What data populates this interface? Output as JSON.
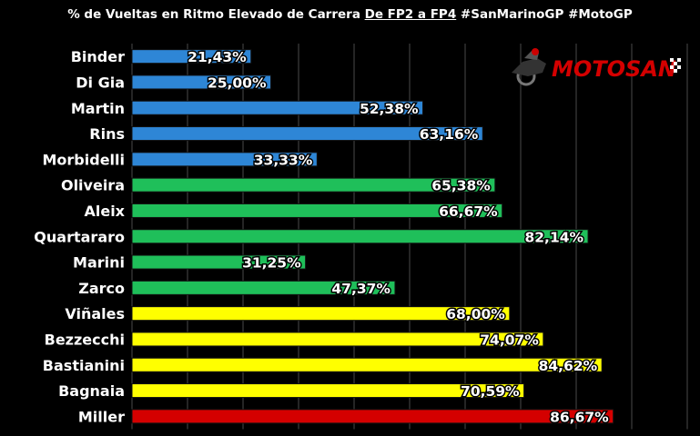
{
  "title": {
    "part1": "% de Vueltas en Ritmo Elevado de Carrera ",
    "part2": "De FP2 a FP4",
    "part3": " #SanMarinoGP #MotoGP"
  },
  "logo": {
    "text": "MOTOSAN"
  },
  "colors": {
    "background": "#000000",
    "grid": "#4a4a4a",
    "blue": "#2e86d6",
    "green": "#1fbf5a",
    "yellow": "#ffff00",
    "red": "#d40000"
  },
  "chart_data": {
    "type": "bar",
    "orientation": "horizontal",
    "xlim": [
      0,
      100
    ],
    "grid": true,
    "categories": [
      "Binder",
      "Di Gia",
      "Martin",
      "Rins",
      "Morbidelli",
      "Oliveira",
      "Aleix",
      "Quartararo",
      "Marini",
      "Zarco",
      "Viñales",
      "Bezzecchi",
      "Bastianini",
      "Bagnaia",
      "Miller"
    ],
    "values": [
      21.43,
      25.0,
      52.38,
      63.16,
      33.33,
      65.38,
      66.67,
      82.14,
      31.25,
      47.37,
      68.0,
      74.07,
      84.62,
      70.59,
      86.67
    ],
    "value_labels": [
      "21,43%",
      "25,00%",
      "52,38%",
      "63,16%",
      "33,33%",
      "65,38%",
      "66,67%",
      "82,14%",
      "31,25%",
      "47,37%",
      "68,00%",
      "74,07%",
      "84,62%",
      "70,59%",
      "86,67%"
    ],
    "bar_colors": [
      "blue",
      "blue",
      "blue",
      "blue",
      "blue",
      "green",
      "green",
      "green",
      "green",
      "green",
      "yellow",
      "yellow",
      "yellow",
      "yellow",
      "red"
    ]
  }
}
